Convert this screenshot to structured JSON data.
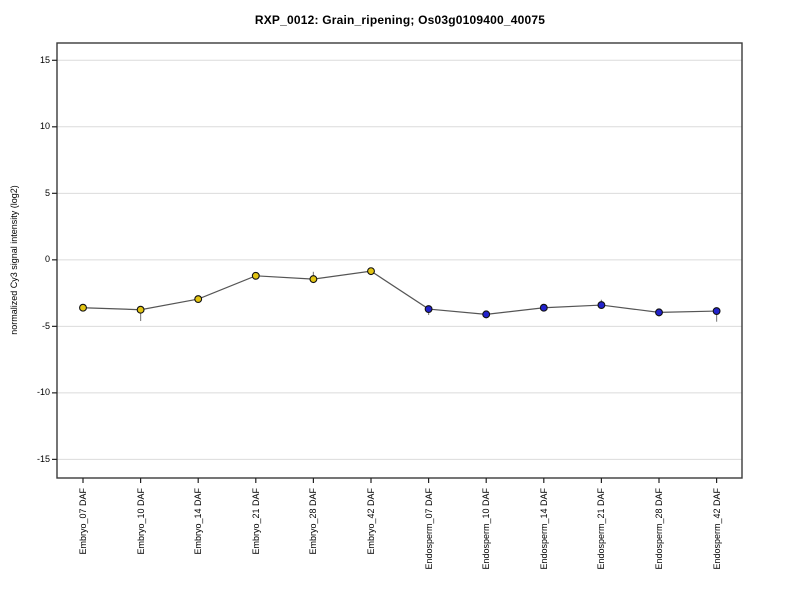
{
  "chart_data": {
    "type": "line",
    "title": "RXP_0012: Grain_ripening; Os03g0109400_40075",
    "ylabel": "normalized Cy3 signal intensity (log2)",
    "xlabel": "",
    "ylim": [
      -16.4,
      16.3
    ],
    "yticks": [
      15,
      10,
      5,
      0,
      -5,
      -10,
      -15
    ],
    "grid": true,
    "legend_position": "none",
    "categories": [
      "Embryo_07 DAF",
      "Embryo_10 DAF",
      "Embryo_14 DAF",
      "Embryo_21 DAF",
      "Embryo_28 DAF",
      "Embryo_42 DAF",
      "Endosperm_07 DAF",
      "Endosperm_10 DAF",
      "Endosperm_14 DAF",
      "Endosperm_21 DAF",
      "Endosperm_28 DAF",
      "Endosperm_42 DAF"
    ],
    "values": [
      -3.6,
      -3.75,
      -2.95,
      -1.2,
      -1.45,
      -0.85,
      -3.7,
      -4.1,
      -3.6,
      -3.4,
      -3.95,
      -3.85
    ],
    "error_down": [
      0.1,
      0.85,
      0.15,
      0.1,
      0.2,
      0.15,
      0.45,
      0.1,
      0.15,
      0.2,
      0.3,
      0.8
    ],
    "error_up": [
      0.1,
      0.2,
      0.15,
      0.1,
      0.55,
      0.15,
      0.15,
      0.1,
      0.15,
      0.4,
      0.1,
      0.1
    ],
    "series": [
      {
        "name": "Embryo",
        "marker_color": "#E2C412",
        "indices": [
          0,
          1,
          2,
          3,
          4,
          5
        ]
      },
      {
        "name": "Endosperm",
        "marker_color": "#2222CC",
        "indices": [
          6,
          7,
          8,
          9,
          10,
          11
        ]
      }
    ],
    "line_color": "#555555",
    "errorbar_color": "#888888",
    "gridline_color": "#DBDBDB",
    "box_color": "#3A3A3A",
    "marker_outline_color": "#111111"
  }
}
